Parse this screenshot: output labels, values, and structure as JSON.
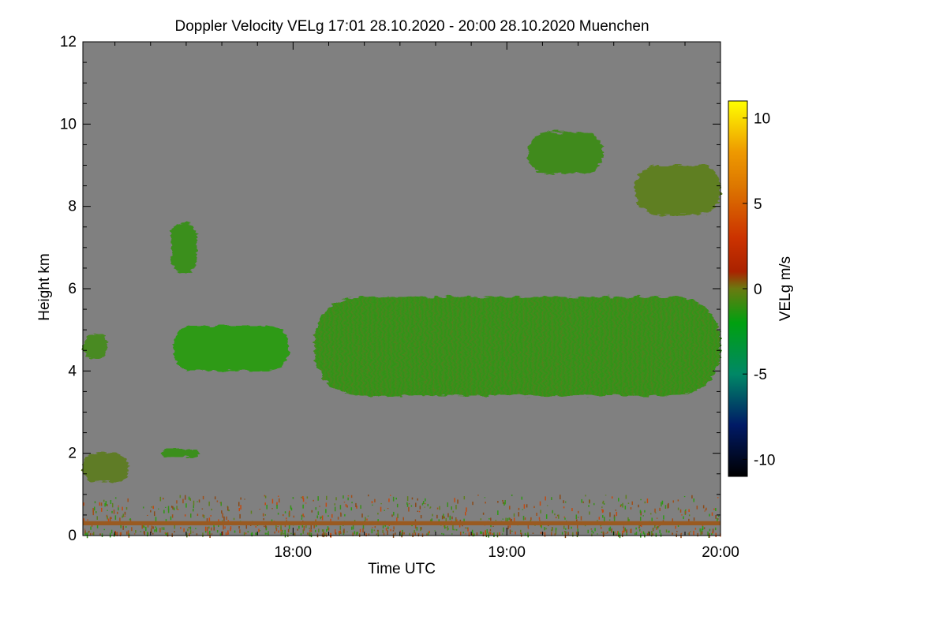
{
  "chart_data": {
    "type": "heatmap",
    "title": "Doppler Velocity VELg   17:01 28.10.2020 - 20:00 28.10.2020 Muenchen",
    "xlabel": "Time UTC",
    "ylabel": "Height km",
    "x_range_hours": [
      17.0167,
      20.0
    ],
    "xticks": [
      {
        "value": 18,
        "label": "18:00"
      },
      {
        "value": 19,
        "label": "19:00"
      },
      {
        "value": 20,
        "label": "20:00"
      }
    ],
    "x_minor_step_hours": 0.1667,
    "ylim": [
      0,
      12
    ],
    "yticks": [
      {
        "value": 0,
        "label": "0"
      },
      {
        "value": 2,
        "label": "2"
      },
      {
        "value": 4,
        "label": "4"
      },
      {
        "value": 6,
        "label": "6"
      },
      {
        "value": 8,
        "label": "8"
      },
      {
        "value": 10,
        "label": "10"
      },
      {
        "value": 12,
        "label": "12"
      }
    ],
    "colorbar": {
      "label": "VELg m/s",
      "range": [
        -11,
        11
      ],
      "ticks": [
        {
          "value": 10,
          "label": "10"
        },
        {
          "value": 5,
          "label": "5"
        },
        {
          "value": 0,
          "label": "0"
        },
        {
          "value": -5,
          "label": "-5"
        },
        {
          "value": -10,
          "label": "-10"
        }
      ],
      "stops": [
        {
          "value": -11,
          "color": "#000000"
        },
        {
          "value": -8,
          "color": "#001a66"
        },
        {
          "value": -5,
          "color": "#008866"
        },
        {
          "value": -2,
          "color": "#00a010"
        },
        {
          "value": 0,
          "color": "#6a7a10"
        },
        {
          "value": 1,
          "color": "#aa2200"
        },
        {
          "value": 3,
          "color": "#cc3300"
        },
        {
          "value": 6,
          "color": "#dd7700"
        },
        {
          "value": 8,
          "color": "#ee9900"
        },
        {
          "value": 11,
          "color": "#ffff00"
        }
      ]
    },
    "background_color": "#808080",
    "regions": [
      {
        "name": "main-cloud-layer",
        "t_start": 18.1,
        "t_end": 20.0,
        "base_km": 3.4,
        "top_km": 5.8,
        "mean_velocity_ms": -1.2,
        "color": "#3a8f1c"
      },
      {
        "name": "mid-cloud-west",
        "t_start": 17.44,
        "t_end": 17.98,
        "base_km": 4.0,
        "top_km": 5.1,
        "mean_velocity_ms": -2.0,
        "color": "#2f9a16"
      },
      {
        "name": "mid-cloud-edge",
        "t_start": 17.0167,
        "t_end": 17.13,
        "base_km": 4.3,
        "top_km": 4.9,
        "mean_velocity_ms": -1.0,
        "color": "#4a8a20"
      },
      {
        "name": "upper-cloud-east",
        "t_start": 19.6,
        "t_end": 20.0,
        "base_km": 7.8,
        "top_km": 9.0,
        "mean_velocity_ms": -0.5,
        "color": "#5e7f20"
      },
      {
        "name": "upper-cloud-streak",
        "t_start": 19.1,
        "t_end": 19.45,
        "base_km": 8.8,
        "top_km": 9.8,
        "mean_velocity_ms": -1.0,
        "color": "#3f8a1a"
      },
      {
        "name": "isolated-cell",
        "t_start": 17.43,
        "t_end": 17.55,
        "base_km": 6.4,
        "top_km": 7.6,
        "mean_velocity_ms": -1.5,
        "color": "#3a8f1c"
      },
      {
        "name": "low-cloud",
        "t_start": 17.0167,
        "t_end": 17.23,
        "base_km": 1.3,
        "top_km": 2.0,
        "mean_velocity_ms": 0.5,
        "color": "#5f7c26"
      },
      {
        "name": "low-cloud-patch",
        "t_start": 17.39,
        "t_end": 17.56,
        "base_km": 1.9,
        "top_km": 2.1,
        "mean_velocity_ms": -1.0,
        "color": "#3a8f1c"
      },
      {
        "name": "boundary-layer-clutter",
        "t_start": 17.0167,
        "t_end": 20.0,
        "base_km": 0.05,
        "top_km": 1.0,
        "mean_velocity_ms": 1.0,
        "color": "#7a6a20"
      },
      {
        "name": "near-ground-line",
        "t_start": 17.0167,
        "t_end": 20.0,
        "base_km": 0.25,
        "top_km": 0.35,
        "mean_velocity_ms": 2.0,
        "color": "#9a5a20"
      }
    ]
  }
}
